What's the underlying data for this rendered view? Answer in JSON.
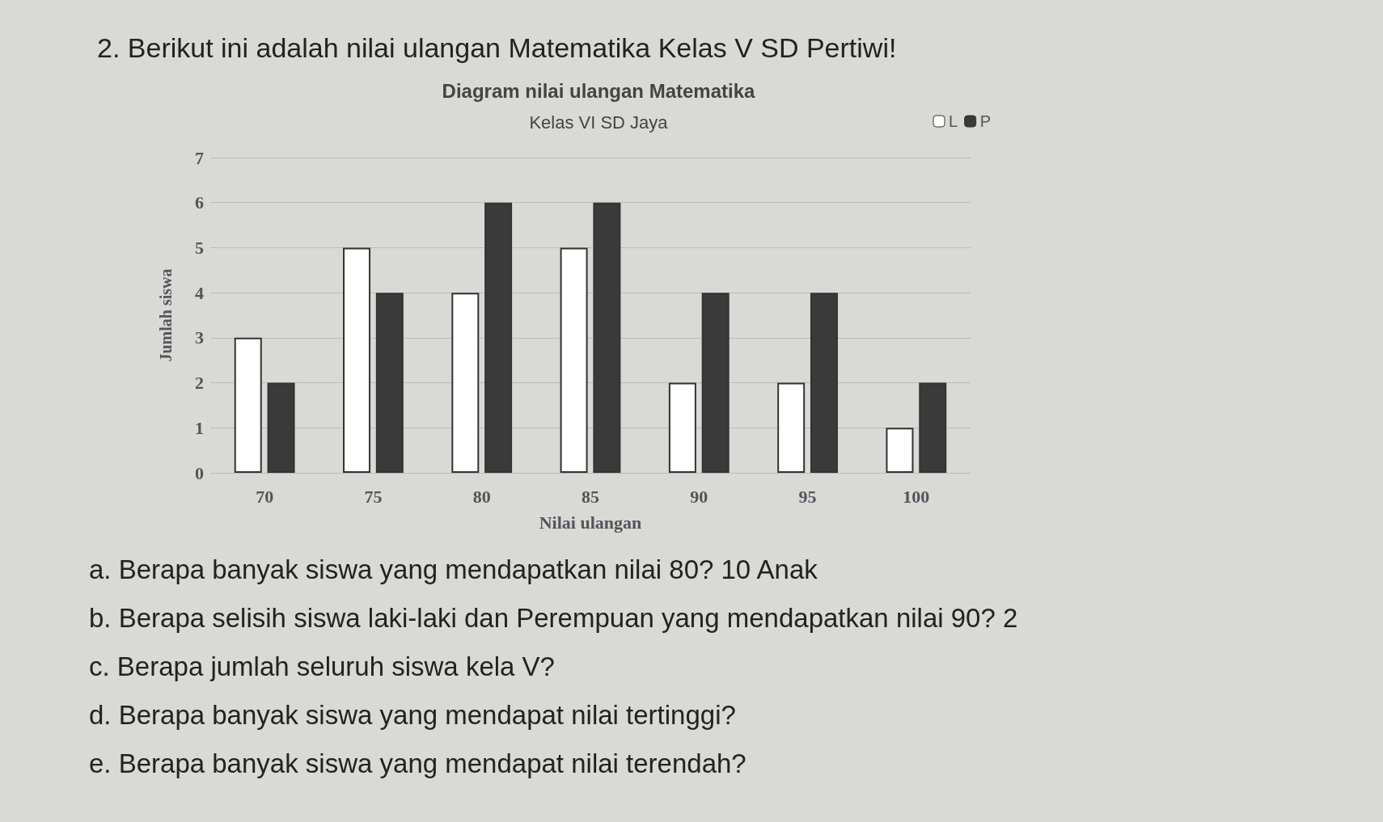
{
  "chart_data": {
    "type": "bar",
    "title": "Diagram nilai ulangan Matematika",
    "subtitle": "Kelas VI SD Jaya",
    "xlabel": "Nilai ulangan",
    "ylabel": "Jumlah siswa",
    "categories": [
      "70",
      "75",
      "80",
      "85",
      "90",
      "95",
      "100"
    ],
    "series": [
      {
        "name": "L",
        "color": "#ffffff",
        "values": [
          3,
          5,
          4,
          5,
          2,
          2,
          1
        ]
      },
      {
        "name": "P",
        "color": "#3a3a3a",
        "values": [
          2,
          4,
          6,
          6,
          4,
          4,
          2
        ]
      }
    ],
    "ylim": [
      0,
      7
    ],
    "yticks": [
      0,
      1,
      2,
      3,
      4,
      5,
      6,
      7
    ],
    "grid": "y",
    "legend": "top right",
    "annotations": [
      "2. Berikut ini adalah nilai ulangan Matematika Kelas V SD Pertiwi!",
      "a. Berapa banyak siswa yang mendapatkan nilai 80? 10 Anak",
      "b. Berapa selisih siswa laki-laki dan Perempuan yang mendapatkan nilai 90? 2",
      "c. Berapa jumlah seluruh siswa kela V?",
      "d. Berapa banyak siswa yang mendapat nilai tertinggi?",
      "e. Berapa banyak siswa yang mendapat nilai terendah?"
    ]
  }
}
